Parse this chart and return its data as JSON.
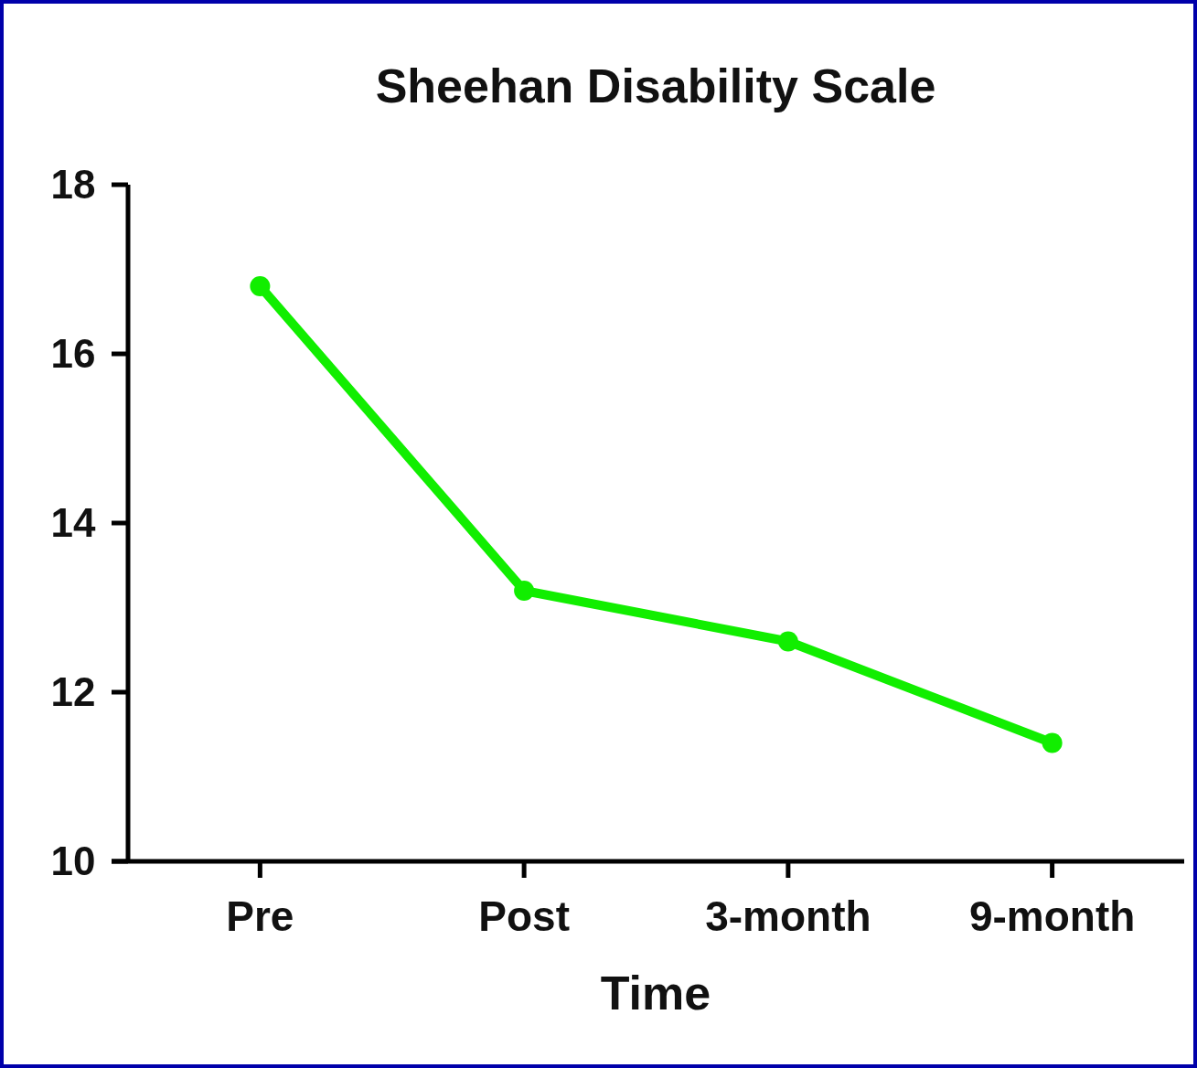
{
  "chart_data": {
    "type": "line",
    "title": "Sheehan Disability Scale",
    "xlabel": "Time",
    "categories": [
      "Pre",
      "Post",
      "3-month",
      "9-month"
    ],
    "series": [
      {
        "color": "#11ee00",
        "values": [
          16.8,
          13.2,
          12.6,
          11.4
        ]
      }
    ],
    "ylim": [
      10,
      18
    ],
    "yticks": [
      10,
      12,
      14,
      16,
      18
    ],
    "grid": false,
    "marker": "circle",
    "line_style": "solid"
  }
}
